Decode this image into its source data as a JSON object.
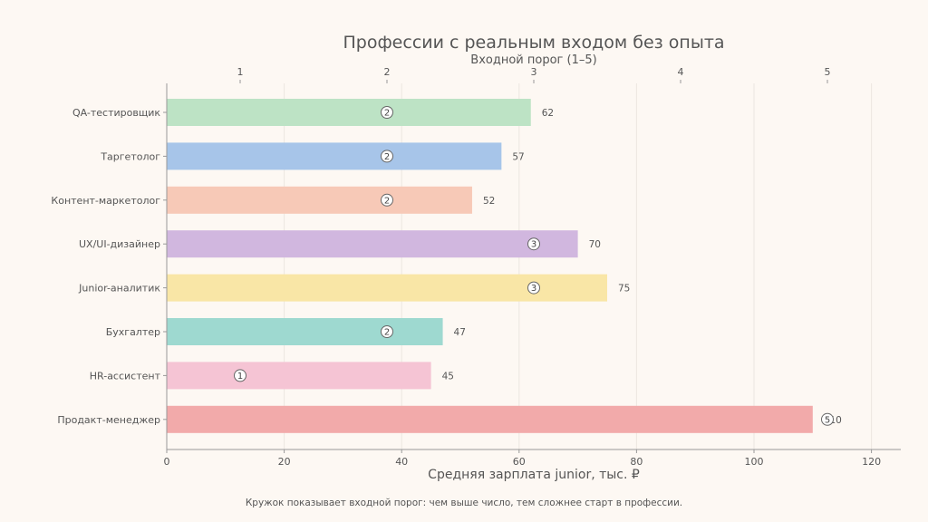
{
  "chart_data": {
    "type": "bar",
    "orientation": "horizontal",
    "title": "Профессии с реальным входом без опыта",
    "top_axis_label": "Входной порог (1–5)",
    "top_axis_ticks": [
      1,
      2,
      3,
      4,
      5
    ],
    "top_axis_range": [
      0.5,
      5.5
    ],
    "xlabel": "Средняя зарплата junior, тыс. ₽",
    "x_ticks": [
      0,
      20,
      40,
      60,
      80,
      100,
      120
    ],
    "xlim": [
      0,
      125
    ],
    "grid": "vertical",
    "footnote": "Кружок показывает входной порог: чем выше число, тем сложнее старт в профессии.",
    "categories": [
      {
        "label": "QA-тестировщик",
        "salary": 62,
        "salary_label": "62",
        "threshold": 2,
        "threshold_label": "2",
        "color": "#bde3c5"
      },
      {
        "label": "Таргетолог",
        "salary": 57,
        "salary_label": "57",
        "threshold": 2,
        "threshold_label": "2",
        "color": "#a7c5e9"
      },
      {
        "label": "Контент-маркетолог",
        "salary": 52,
        "salary_label": "52",
        "threshold": 2,
        "threshold_label": "2",
        "color": "#f7c9b7"
      },
      {
        "label": "UX/UI-дизайнер",
        "salary": 70,
        "salary_label": "70",
        "threshold": 3,
        "threshold_label": "3",
        "color": "#d1b7df"
      },
      {
        "label": "Junior-аналитик",
        "salary": 75,
        "salary_label": "75",
        "threshold": 3,
        "threshold_label": "3",
        "color": "#f9e6a6"
      },
      {
        "label": "Бухгалтер",
        "salary": 47,
        "salary_label": "47",
        "threshold": 2,
        "threshold_label": "2",
        "color": "#9ed9d0"
      },
      {
        "label": "HR-ассистент",
        "salary": 45,
        "salary_label": "45",
        "threshold": 1,
        "threshold_label": "1",
        "color": "#f5c4d4"
      },
      {
        "label": "Продакт-менеджер",
        "salary": 110,
        "salary_label": "110",
        "threshold": 5,
        "threshold_label": "5",
        "color": "#f2aaaa"
      }
    ]
  }
}
